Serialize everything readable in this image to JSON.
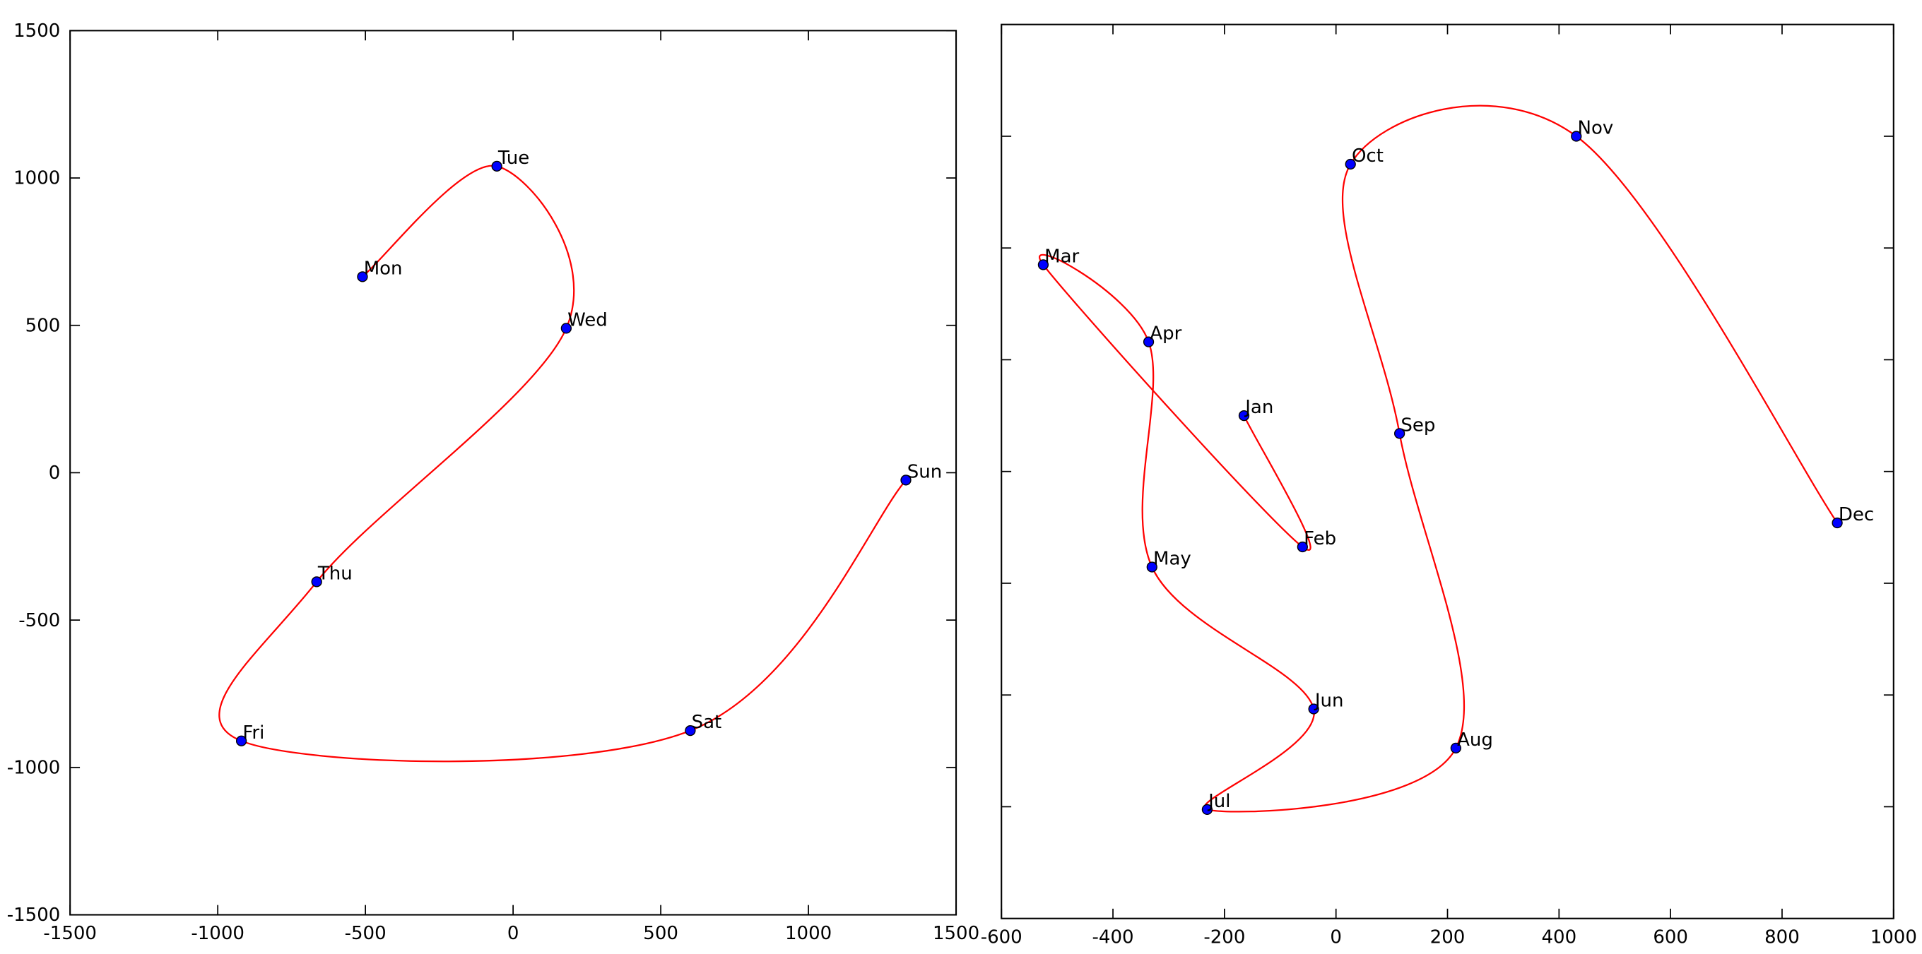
{
  "chart_data": [
    {
      "type": "scatter",
      "labels": [
        "Mon",
        "Tue",
        "Wed",
        "Thu",
        "Fri",
        "Sat",
        "Sun"
      ],
      "x": [
        -510,
        -55,
        180,
        -665,
        -920,
        600,
        1330
      ],
      "values": [
        665,
        1040,
        490,
        -370,
        -910,
        -875,
        -25
      ],
      "color": "#0000ff",
      "line_color": "#ff0000",
      "xlim": [
        -1500,
        1500
      ],
      "ylim": [
        -1500,
        1500
      ],
      "xticks": [
        -1500,
        -1000,
        -500,
        0,
        500,
        1000,
        1500
      ],
      "yticks": [
        -1500,
        -1000,
        -500,
        0,
        500,
        1000,
        1500
      ],
      "ytick_labels": true
    },
    {
      "type": "scatter",
      "labels": [
        "Jan",
        "Feb",
        "Mar",
        "Apr",
        "May",
        "Jun",
        "Jul",
        "Aug",
        "Sep",
        "Oct",
        "Nov",
        "Dec"
      ],
      "x": [
        -165,
        -60,
        -525,
        -336,
        -330,
        -40,
        -231,
        215,
        114,
        26,
        431,
        899
      ],
      "values": [
        100,
        -135,
        370,
        232,
        -171,
        -425,
        -605,
        -495,
        68,
        550,
        600,
        -92
      ],
      "color": "#0000ff",
      "line_color": "#ff0000",
      "xlim": [
        -600,
        1000
      ],
      "ylim": [
        -800,
        800
      ],
      "xticks": [
        -600,
        -400,
        -200,
        0,
        200,
        400,
        600,
        800,
        1000
      ],
      "yticks": [
        -600,
        -400,
        -200,
        0,
        200,
        400,
        600
      ],
      "ytick_labels": false
    }
  ]
}
